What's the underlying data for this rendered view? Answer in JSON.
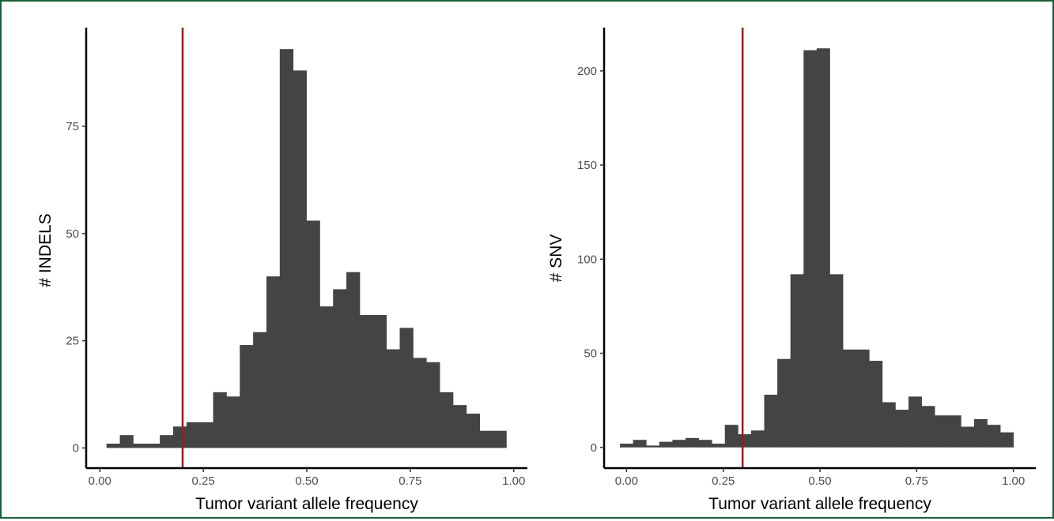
{
  "colors": {
    "bar": "#444444",
    "threshold": "#9b1c1c",
    "axis": "#000000",
    "frame": "#1b5e3b"
  },
  "chart_data": [
    {
      "type": "bar",
      "histogram": true,
      "xlabel": "Tumor variant allele frequency",
      "ylabel": "# INDELS",
      "xlim": [
        -0.033,
        1.033
      ],
      "ylim": [
        -4.7,
        98
      ],
      "xticks": [
        0.0,
        0.25,
        0.5,
        0.75,
        1.0
      ],
      "xtick_labels": [
        "0.00",
        "0.25",
        "0.50",
        "0.75",
        "1.00"
      ],
      "yticks": [
        0,
        25,
        50,
        75
      ],
      "ytick_labels": [
        "0",
        "25",
        "50",
        "75"
      ],
      "bin_width": 0.0322,
      "bins_start": 0.0161,
      "values": [
        1,
        3,
        1,
        1,
        3,
        5,
        6,
        6,
        13,
        12,
        24,
        27,
        40,
        93,
        88,
        53,
        33,
        37,
        41,
        31,
        31,
        23,
        28,
        21,
        20,
        13,
        10,
        8,
        4,
        4
      ],
      "vline": 0.2,
      "grid": false
    },
    {
      "type": "bar",
      "histogram": true,
      "xlabel": "Tumor variant allele frequency",
      "ylabel": "# SNV",
      "xlim": [
        -0.058,
        1.058
      ],
      "ylim": [
        -11,
        223
      ],
      "xticks": [
        0.0,
        0.25,
        0.5,
        0.75,
        1.0
      ],
      "xtick_labels": [
        "0.00",
        "0.25",
        "0.50",
        "0.75",
        "1.00"
      ],
      "yticks": [
        0,
        50,
        100,
        150,
        200
      ],
      "ytick_labels": [
        "0",
        "50",
        "100",
        "150",
        "200"
      ],
      "bin_width": 0.0339,
      "bins_start": -0.017,
      "values": [
        2,
        4,
        1,
        3,
        4,
        5,
        4,
        2,
        12,
        7,
        9,
        28,
        47,
        92,
        211,
        212,
        92,
        52,
        52,
        46,
        24,
        20,
        27,
        22,
        17,
        17,
        11,
        15,
        12,
        8
      ],
      "vline": 0.3,
      "grid": false
    }
  ]
}
